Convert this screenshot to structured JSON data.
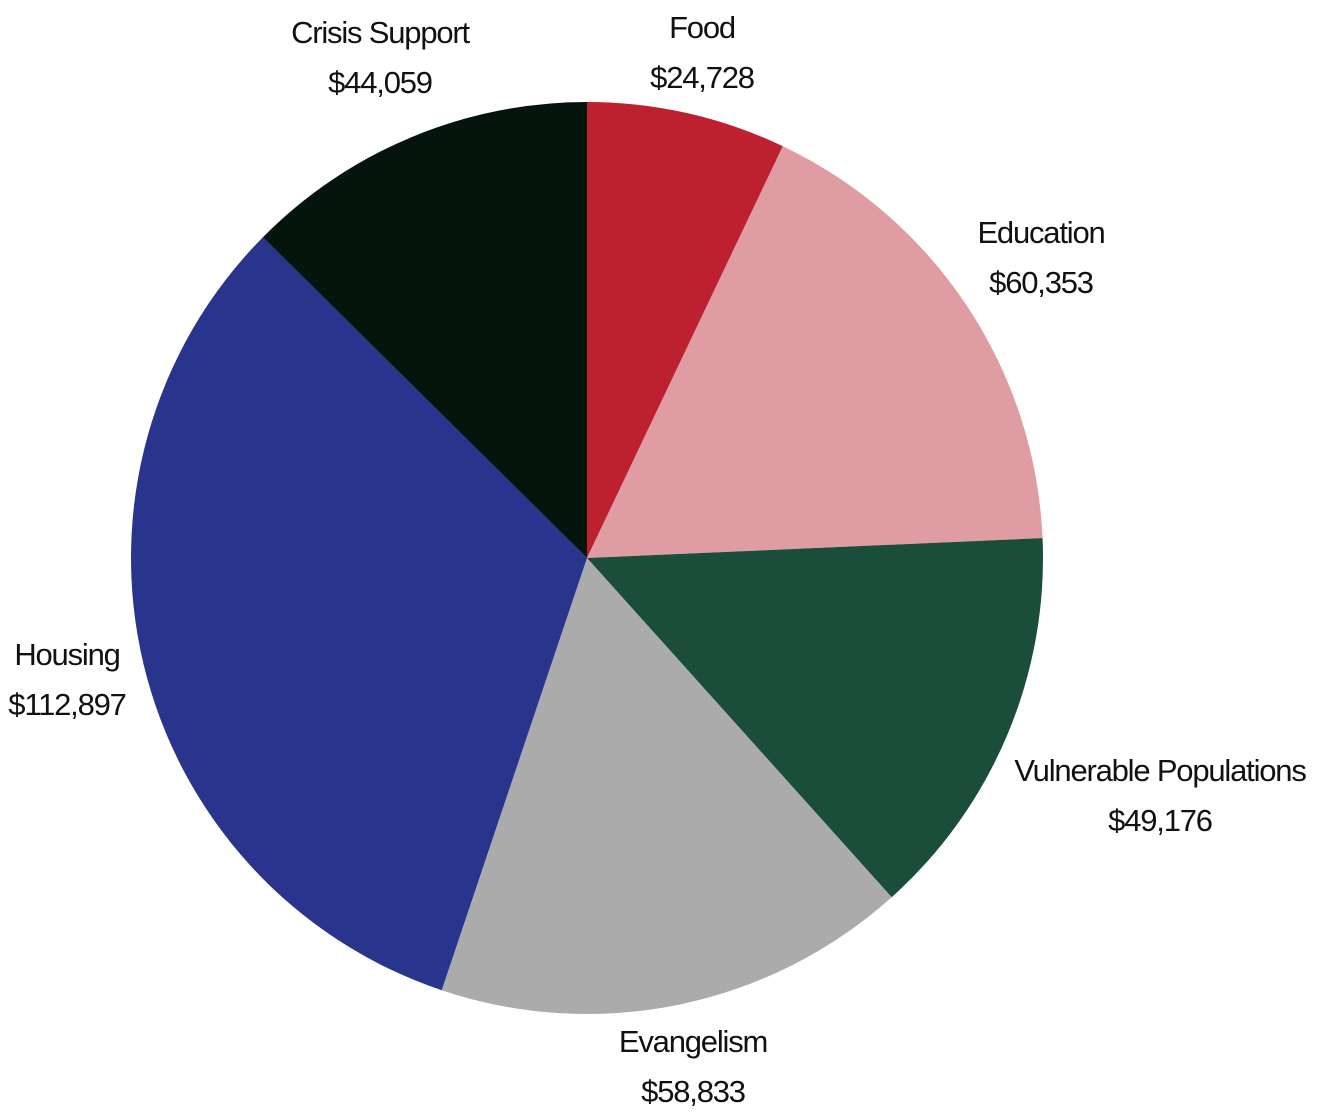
{
  "chart_data": {
    "type": "pie",
    "title": "",
    "start": "top",
    "direction": "clockwise",
    "legend": "none",
    "slices": [
      {
        "label": "Food",
        "value": 24728,
        "value_label": "$24,728",
        "color": "#BD202E"
      },
      {
        "label": "Education",
        "value": 60353,
        "value_label": "$60,353",
        "color": "#DF9DA3"
      },
      {
        "label": "Vulnerable Populations",
        "value": 49176,
        "value_label": "$49,176",
        "color": "#1A4D3A"
      },
      {
        "label": "Evangelism",
        "value": 58833,
        "value_label": "$58,833",
        "color": "#ABABAB"
      },
      {
        "label": "Housing",
        "value": 112897,
        "value_label": "$112,897",
        "color": "#29358C"
      },
      {
        "label": "Crisis Support",
        "value": 44059,
        "value_label": "$44,059",
        "color": "#06140E"
      }
    ]
  }
}
